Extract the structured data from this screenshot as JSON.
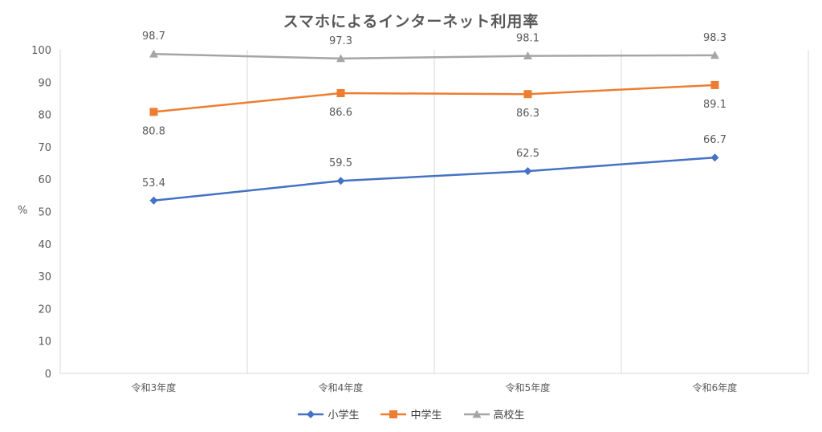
{
  "chart_data": {
    "type": "line",
    "title": "スマホによるインターネット利用率",
    "ylabel": "%",
    "xlabel": "",
    "categories": [
      "令和3年度",
      "令和4年度",
      "令和5年度",
      "令和6年度"
    ],
    "ylim": [
      0,
      100
    ],
    "yticks": [
      0,
      10,
      20,
      30,
      40,
      50,
      60,
      70,
      80,
      90,
      100
    ],
    "grid": "vertical",
    "legend_position": "bottom",
    "series": [
      {
        "name": "小学生",
        "values": [
          53.4,
          59.5,
          62.5,
          66.7
        ],
        "labels": [
          "53.4",
          "59.5",
          "62.5",
          "66.7"
        ],
        "color": "#4472C4",
        "marker": "diamond",
        "label_pos": "above"
      },
      {
        "name": "中学生",
        "values": [
          80.8,
          86.6,
          86.3,
          89.1
        ],
        "labels": [
          "80.8",
          "86.6",
          "86.3",
          "89.1"
        ],
        "color": "#ED7D31",
        "marker": "square",
        "label_pos": "below"
      },
      {
        "name": "高校生",
        "values": [
          98.7,
          97.3,
          98.1,
          98.3
        ],
        "labels": [
          "98.7",
          "97.3",
          "98.1",
          "98.3"
        ],
        "color": "#A5A5A5",
        "marker": "triangle",
        "label_pos": "above"
      }
    ]
  }
}
